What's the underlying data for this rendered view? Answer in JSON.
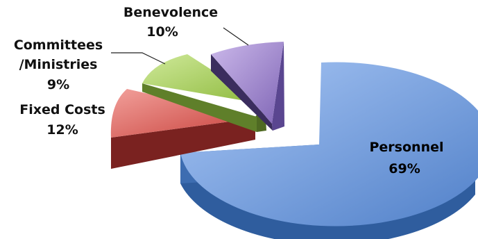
{
  "chart_data": {
    "type": "pie",
    "style": "3d-exploded",
    "labels": [
      "Personnel",
      "Fixed Costs",
      "Committees\n/Ministries",
      "Benevolence"
    ],
    "values": [
      69,
      12,
      9,
      10
    ],
    "value_labels": [
      "69%",
      "12%",
      "9%",
      "10%"
    ],
    "colors": [
      "#5b8ad1",
      "#d34a45",
      "#98c441",
      "#8a6bbf"
    ],
    "legend": "none"
  }
}
